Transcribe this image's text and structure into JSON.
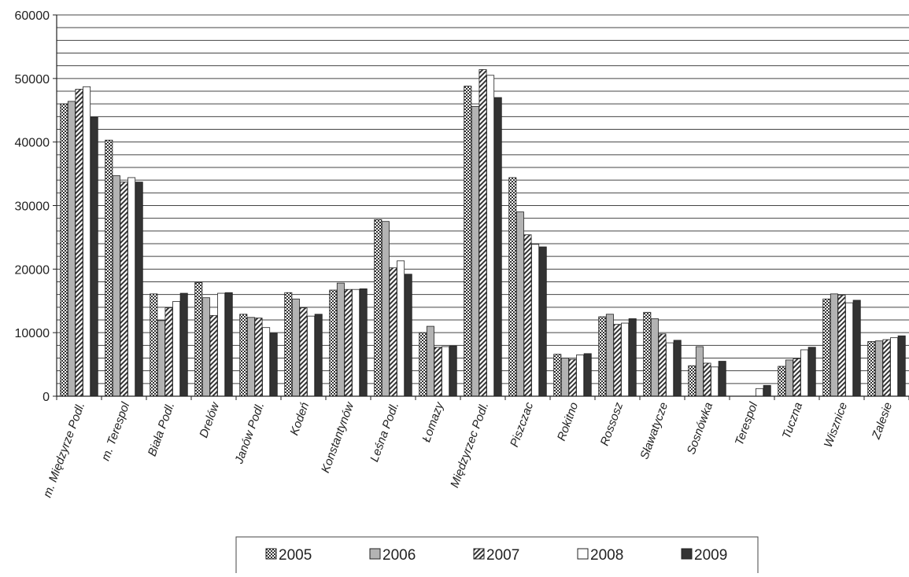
{
  "chart_data": {
    "type": "bar",
    "title": "",
    "xlabel": "",
    "ylabel": "",
    "ylim": [
      0,
      60000
    ],
    "yticks": [
      "0",
      "10000",
      "20000",
      "30000",
      "40000",
      "50000",
      "60000"
    ],
    "grid": true,
    "legend_position": "bottom",
    "categories": [
      "m. Międzyrze Podl.",
      "m. Terespol",
      "Biała Podl.",
      "Drelów",
      "Janów Podl.",
      "Kodeń",
      "Konstantynów",
      "Leśna Podl.",
      "Łomazy",
      "Międzyrzec Podl.",
      "Piszczac",
      "Rokitno",
      "Rossosz",
      "Sławatycze",
      "Sosnówka",
      "Terespol",
      "Tuczna",
      "Wisznice",
      "Zalesie"
    ],
    "series": [
      {
        "name": "2005",
        "pattern": "checker",
        "values": [
          46000,
          40300,
          16100,
          17900,
          12900,
          16300,
          16700,
          27800,
          10000,
          48800,
          34400,
          6600,
          12500,
          13200,
          4800,
          0,
          4700,
          15300,
          8600
        ]
      },
      {
        "name": "2006",
        "pattern": "gray",
        "values": [
          46400,
          34700,
          11900,
          15500,
          12400,
          15300,
          17800,
          27500,
          11000,
          45600,
          29000,
          6000,
          12900,
          12200,
          7800,
          0,
          5700,
          16100,
          8700
        ]
      },
      {
        "name": "2007",
        "pattern": "diagonal",
        "values": [
          48300,
          33700,
          13900,
          12700,
          12300,
          13900,
          16800,
          20200,
          7700,
          51400,
          25400,
          5800,
          11300,
          9800,
          5200,
          0,
          5900,
          15900,
          8900
        ]
      },
      {
        "name": "2008",
        "pattern": "white",
        "values": [
          48700,
          34400,
          14900,
          16200,
          10800,
          12600,
          16800,
          21300,
          7800,
          50500,
          23900,
          6500,
          11500,
          8400,
          4600,
          1200,
          7300,
          14700,
          9200
        ]
      },
      {
        "name": "2009",
        "pattern": "black",
        "values": [
          43900,
          33700,
          16200,
          16300,
          9900,
          12900,
          16900,
          19200,
          7900,
          47000,
          23500,
          6700,
          12200,
          8800,
          5500,
          1700,
          7700,
          15100,
          9500
        ]
      }
    ],
    "colors": {
      "gray": "#b3b3b3",
      "black": "#333333",
      "grid": "#444444"
    }
  }
}
